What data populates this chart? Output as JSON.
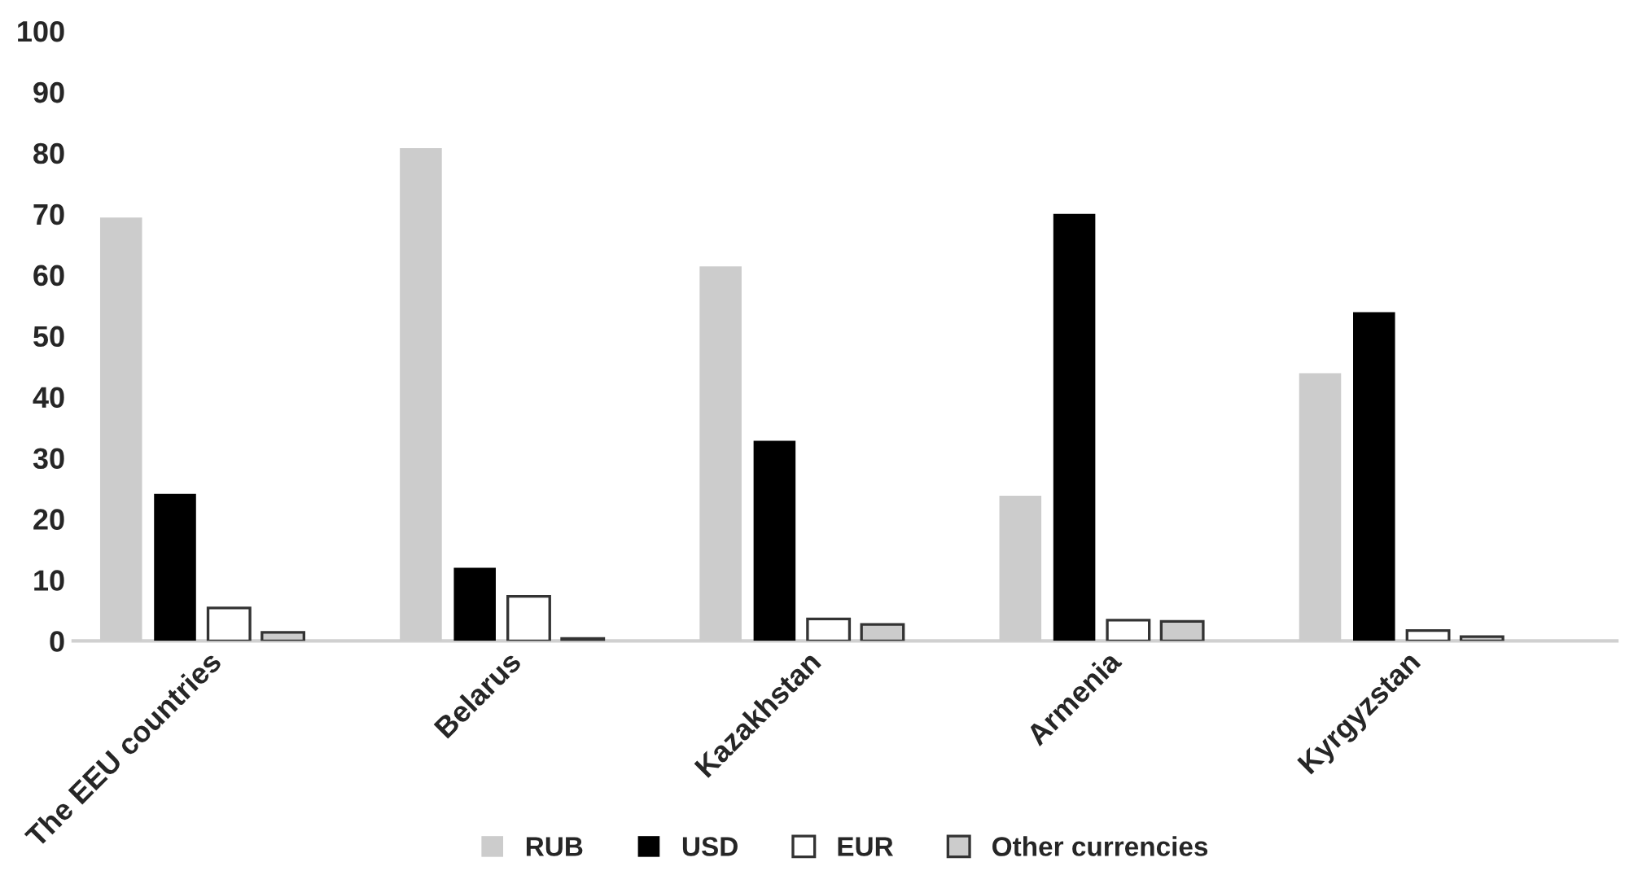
{
  "chart_data": {
    "type": "bar",
    "categories": [
      "The EEU countries",
      "Belarus",
      "Kazakhstan",
      "Armenia",
      "Kyrgyzstan"
    ],
    "series": [
      {
        "name": "RUB",
        "color": "#cccccc",
        "values": [
          69.4,
          80.8,
          61.4,
          23.8,
          43.9
        ]
      },
      {
        "name": "USD",
        "color": "#000000",
        "values": [
          24.1,
          12.0,
          32.8,
          70.0,
          53.9
        ]
      },
      {
        "name": "EUR",
        "color": "#ffffff",
        "values": [
          5.4,
          7.3,
          3.6,
          3.4,
          1.7
        ]
      },
      {
        "name": "Other currencies",
        "color": "#cccccc",
        "values": [
          1.4,
          0.4,
          2.7,
          3.2,
          0.7
        ]
      }
    ],
    "ylim": [
      0,
      100
    ],
    "yticks": [
      0,
      10,
      20,
      30,
      40,
      50,
      60,
      70,
      80,
      90,
      100
    ],
    "grid": false,
    "legend": "bottom"
  }
}
